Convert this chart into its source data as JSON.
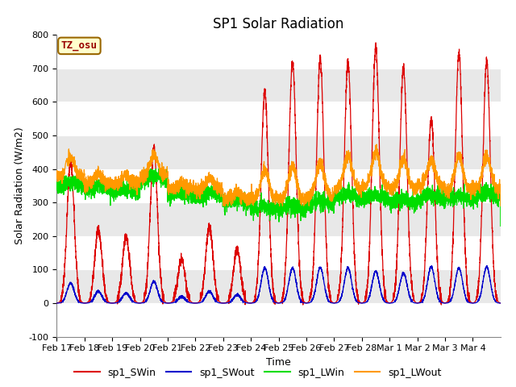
{
  "title": "SP1 Solar Radiation",
  "xlabel": "Time",
  "ylabel": "Solar Radiation (W/m2)",
  "ylim": [
    -100,
    800
  ],
  "yticks": [
    -100,
    0,
    100,
    200,
    300,
    400,
    500,
    600,
    700,
    800
  ],
  "xtick_labels": [
    "Feb 17",
    "Feb 18",
    "Feb 19",
    "Feb 20",
    "Feb 21",
    "Feb 22",
    "Feb 23",
    "Feb 24",
    "Feb 25",
    "Feb 26",
    "Feb 27",
    "Feb 28",
    "Mar 1",
    "Mar 2",
    "Mar 3",
    "Mar 4"
  ],
  "colors": {
    "sp1_SWin": "#dd0000",
    "sp1_SWout": "#0000cc",
    "sp1_LWin": "#00dd00",
    "sp1_LWout": "#ff9900"
  },
  "tz_label": "TZ_osu",
  "tz_bg": "#ffffcc",
  "tz_border": "#996600",
  "bg_band_color": "#e8e8e8",
  "n_days": 16,
  "pts_per_day": 288,
  "title_fontsize": 12,
  "axis_fontsize": 9,
  "tick_fontsize": 8
}
